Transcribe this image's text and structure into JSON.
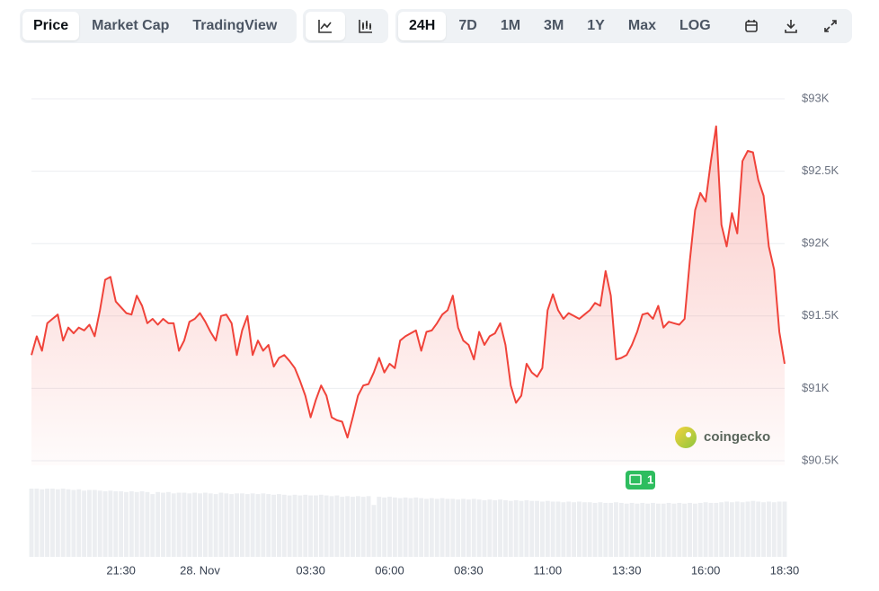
{
  "toolbar": {
    "views": [
      "Price",
      "Market Cap",
      "TradingView"
    ],
    "ranges": [
      "24H",
      "7D",
      "1M",
      "3M",
      "1Y",
      "Max",
      "LOG"
    ]
  },
  "chart_data": {
    "type": "line",
    "color": "#f0433a",
    "categories": [
      null,
      null,
      null,
      null,
      null,
      null,
      null,
      null,
      null,
      null,
      null,
      null,
      null,
      null,
      null,
      null,
      null,
      "21:30",
      null,
      null,
      null,
      null,
      null,
      null,
      null,
      null,
      null,
      null,
      null,
      null,
      null,
      null,
      "28. Nov",
      null,
      null,
      null,
      null,
      null,
      null,
      null,
      null,
      null,
      null,
      null,
      null,
      null,
      null,
      null,
      null,
      null,
      null,
      null,
      null,
      "03:30",
      null,
      null,
      null,
      null,
      null,
      null,
      null,
      null,
      null,
      null,
      null,
      null,
      null,
      null,
      "06:00",
      null,
      null,
      null,
      null,
      null,
      null,
      null,
      null,
      null,
      null,
      null,
      null,
      null,
      null,
      "08:30",
      null,
      null,
      null,
      null,
      null,
      null,
      null,
      null,
      null,
      null,
      null,
      null,
      null,
      null,
      "11:00",
      null,
      null,
      null,
      null,
      null,
      null,
      null,
      null,
      null,
      null,
      null,
      null,
      null,
      null,
      "13:30",
      null,
      null,
      null,
      null,
      null,
      null,
      null,
      null,
      null,
      null,
      null,
      null,
      null,
      null,
      "16:00",
      null,
      null,
      null,
      null,
      null,
      null,
      null,
      null,
      null,
      null,
      null,
      null,
      null,
      null,
      "18:30"
    ],
    "values": [
      91230,
      91360,
      91260,
      91450,
      91480,
      91510,
      91330,
      91420,
      91380,
      91420,
      91400,
      91440,
      91360,
      91540,
      91750,
      91770,
      91600,
      91560,
      91520,
      91510,
      91640,
      91570,
      91450,
      91480,
      91440,
      91480,
      91450,
      91450,
      91260,
      91330,
      91460,
      91480,
      91520,
      91460,
      91390,
      91330,
      91500,
      91510,
      91450,
      91230,
      91400,
      91500,
      91230,
      91330,
      91260,
      91300,
      91150,
      91210,
      91230,
      91190,
      91140,
      91050,
      90950,
      90800,
      90920,
      91020,
      90950,
      90800,
      90780,
      90770,
      90660,
      90800,
      90950,
      91020,
      91030,
      91110,
      91210,
      91110,
      91170,
      91140,
      91330,
      91360,
      91380,
      91400,
      91260,
      91390,
      91400,
      91450,
      91510,
      91540,
      91640,
      91420,
      91330,
      91300,
      91200,
      91390,
      91300,
      91360,
      91380,
      91450,
      91300,
      91020,
      90900,
      90950,
      91170,
      91110,
      91080,
      91140,
      91540,
      91650,
      91540,
      91480,
      91520,
      91500,
      91480,
      91510,
      91540,
      91590,
      91570,
      91810,
      91640,
      91200,
      91210,
      91230,
      91300,
      91390,
      91510,
      91520,
      91480,
      91570,
      91420,
      91460,
      91450,
      91440,
      91480,
      91880,
      92230,
      92350,
      92290,
      92570,
      92810,
      92130,
      91980,
      92210,
      92070,
      92570,
      92640,
      92630,
      92440,
      92330,
      91980,
      91820,
      91390,
      91170
    ],
    "volume": [
      100,
      100,
      99,
      100,
      100,
      99,
      100,
      99,
      98,
      99,
      97,
      98,
      98,
      97,
      96,
      97,
      96,
      96,
      95,
      96,
      95,
      96,
      95,
      92,
      95,
      94,
      95,
      93,
      94,
      94,
      93,
      94,
      93,
      94,
      93,
      92,
      94,
      93,
      92,
      93,
      93,
      92,
      93,
      92,
      93,
      92,
      91,
      92,
      91,
      90,
      91,
      90,
      91,
      90,
      90,
      91,
      90,
      89,
      90,
      88,
      89,
      88,
      89,
      88,
      89,
      76,
      88,
      87,
      88,
      87,
      86,
      87,
      86,
      87,
      86,
      85,
      86,
      85,
      86,
      85,
      85,
      84,
      85,
      84,
      85,
      84,
      83,
      84,
      83,
      84,
      83,
      82,
      83,
      82,
      83,
      82,
      82,
      81,
      82,
      81,
      81,
      80,
      81,
      80,
      81,
      80,
      80,
      79,
      80,
      79,
      79,
      80,
      79,
      78,
      79,
      78,
      79,
      78,
      79,
      78,
      78,
      79,
      78,
      79,
      78,
      79,
      78,
      79,
      80,
      79,
      79,
      80,
      81,
      80,
      81,
      80,
      81,
      82,
      81,
      80,
      81,
      80,
      81,
      81
    ],
    "ylim": [
      90500,
      93000
    ],
    "yticks": [
      {
        "value": 93000,
        "label": "$93K"
      },
      {
        "value": 92500,
        "label": "$92.5K"
      },
      {
        "value": 92000,
        "label": "$92K"
      },
      {
        "value": 91500,
        "label": "$91.5K"
      },
      {
        "value": 91000,
        "label": "$91K"
      },
      {
        "value": 90500,
        "label": "$90.5K"
      }
    ],
    "grid": true,
    "watermark": "coingecko",
    "news_count": 1
  }
}
